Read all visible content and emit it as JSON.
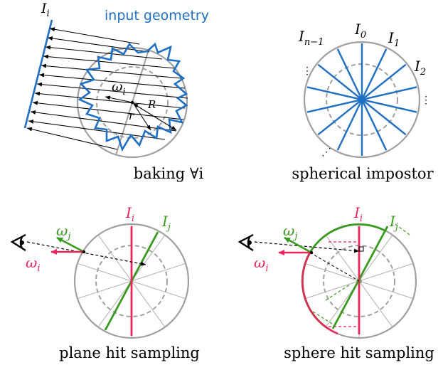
{
  "colors": {
    "blue": "#1f6fc4",
    "grey": "#a0a0a0",
    "red": "#e8255b",
    "green": "#3a9a1f",
    "black": "#000000"
  },
  "panels": {
    "baking": {
      "caption": "baking  ∀i",
      "plane_label_main": "I",
      "plane_label_sub": "i",
      "geometry_label": "input geometry",
      "omega_main": "ω",
      "omega_sub": "i",
      "R_label": "R",
      "r_label": "r"
    },
    "impostor": {
      "caption": "spherical impostor",
      "labels": [
        {
          "main": "I",
          "sub": "n−1"
        },
        {
          "main": "I",
          "sub": "0"
        },
        {
          "main": "I",
          "sub": "1"
        },
        {
          "main": "I",
          "sub": "2"
        }
      ],
      "dots": "⋮",
      "dots_diag": "⋰"
    },
    "plane_hit": {
      "caption": "plane hit sampling",
      "Ii_main": "I",
      "Ii_sub": "i",
      "Ij_main": "I",
      "Ij_sub": "j",
      "wj_main": "ω",
      "wj_sub": "j",
      "wi_main": "ω",
      "wi_sub": "i"
    },
    "sphere_hit": {
      "caption": "sphere hit sampling",
      "Ii_main": "I",
      "Ii_sub": "i",
      "Ij_main": "I",
      "Ij_sub": "j",
      "wj_main": "ω",
      "wj_sub": "j",
      "wi_main": "ω",
      "wi_sub": "i"
    }
  }
}
